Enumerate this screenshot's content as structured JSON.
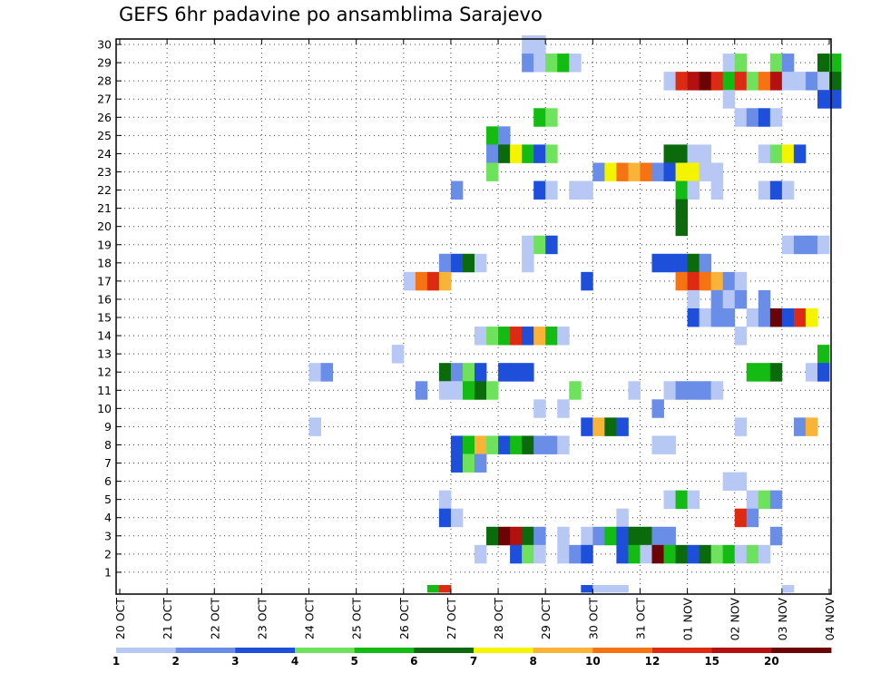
{
  "chart_data": {
    "type": "heatmap",
    "title": "GEFS 6hr padavine po ansamblima Sarajevo",
    "y_ticks": [
      "1",
      "2",
      "3",
      "4",
      "5",
      "6",
      "7",
      "8",
      "9",
      "10",
      "11",
      "12",
      "13",
      "14",
      "15",
      "16",
      "17",
      "18",
      "19",
      "20",
      "21",
      "22",
      "23",
      "24",
      "25",
      "26",
      "27",
      "28",
      "29",
      "30"
    ],
    "x_ticks": [
      "20 OCT",
      "21 OCT",
      "22 OCT",
      "23 OCT",
      "24 OCT",
      "25 OCT",
      "26 OCT",
      "27 OCT",
      "28 OCT",
      "29 OCT",
      "30 OCT",
      "31 OCT",
      "01 NOV",
      "02 NOV",
      "03 NOV",
      "04 NOV"
    ],
    "grid": true,
    "legend": {
      "placement": "bottom",
      "levels": [
        {
          "label": "1",
          "color": "#b7c8f5"
        },
        {
          "label": "2",
          "color": "#6a8ee8"
        },
        {
          "label": "3",
          "color": "#1d4fdb"
        },
        {
          "label": "4",
          "color": "#6fe25d"
        },
        {
          "label": "5",
          "color": "#13bb13"
        },
        {
          "label": "6",
          "color": "#0b6a0b"
        },
        {
          "label": "7",
          "color": "#f4f400"
        },
        {
          "label": "8",
          "color": "#fab339"
        },
        {
          "label": "10",
          "color": "#f57313"
        },
        {
          "label": "12",
          "color": "#dd2a12"
        },
        {
          "label": "15",
          "color": "#b31010"
        },
        {
          "label": "20",
          "color": "#6b0505"
        }
      ]
    },
    "cells": [
      [
        "28 OCT 12Z",
        30,
        1
      ],
      [
        "28 OCT 18Z",
        30,
        1
      ],
      [
        "28 OCT 12Z",
        29,
        2
      ],
      [
        "28 OCT 18Z",
        29,
        1
      ],
      [
        "29 OCT 00Z",
        29,
        4
      ],
      [
        "29 OCT 06Z",
        29,
        5
      ],
      [
        "29 OCT 12Z",
        29,
        1
      ],
      [
        "01 NOV 18Z",
        29,
        1
      ],
      [
        "02 NOV 00Z",
        29,
        4
      ],
      [
        "02 NOV 18Z",
        29,
        4
      ],
      [
        "03 NOV 00Z",
        29,
        2
      ],
      [
        "03 NOV 18Z",
        29,
        6
      ],
      [
        "04 NOV 00Z",
        29,
        5
      ],
      [
        "31 OCT 12Z",
        28,
        1
      ],
      [
        "31 OCT 18Z",
        28,
        12
      ],
      [
        "01 NOV 00Z",
        28,
        15
      ],
      [
        "01 NOV 06Z",
        28,
        20
      ],
      [
        "01 NOV 12Z",
        28,
        12
      ],
      [
        "01 NOV 18Z",
        28,
        5
      ],
      [
        "02 NOV 00Z",
        28,
        12
      ],
      [
        "02 NOV 06Z",
        28,
        4
      ],
      [
        "02 NOV 12Z",
        28,
        10
      ],
      [
        "02 NOV 18Z",
        28,
        15
      ],
      [
        "03 NOV 00Z",
        28,
        1
      ],
      [
        "03 NOV 06Z",
        28,
        1
      ],
      [
        "03 NOV 12Z",
        28,
        2
      ],
      [
        "03 NOV 18Z",
        28,
        1
      ],
      [
        "04 NOV 00Z",
        28,
        6
      ],
      [
        "01 NOV 18Z",
        27,
        1
      ],
      [
        "03 NOV 18Z",
        27,
        3
      ],
      [
        "04 NOV 00Z",
        27,
        3
      ],
      [
        "28 OCT 18Z",
        26,
        5
      ],
      [
        "29 OCT 00Z",
        26,
        4
      ],
      [
        "02 NOV 00Z",
        26,
        1
      ],
      [
        "02 NOV 06Z",
        26,
        2
      ],
      [
        "02 NOV 12Z",
        26,
        3
      ],
      [
        "02 NOV 18Z",
        26,
        1
      ],
      [
        "27 OCT 18Z",
        25,
        5
      ],
      [
        "28 OCT 00Z",
        25,
        2
      ],
      [
        "27 OCT 18Z",
        24,
        2
      ],
      [
        "28 OCT 00Z",
        24,
        6
      ],
      [
        "28 OCT 06Z",
        24,
        7
      ],
      [
        "28 OCT 12Z",
        24,
        5
      ],
      [
        "28 OCT 18Z",
        24,
        3
      ],
      [
        "29 OCT 00Z",
        24,
        4
      ],
      [
        "31 OCT 12Z",
        24,
        6
      ],
      [
        "31 OCT 18Z",
        24,
        6
      ],
      [
        "01 NOV 00Z",
        24,
        1
      ],
      [
        "01 NOV 06Z",
        24,
        1
      ],
      [
        "02 NOV 12Z",
        24,
        1
      ],
      [
        "02 NOV 18Z",
        24,
        4
      ],
      [
        "03 NOV 00Z",
        24,
        7
      ],
      [
        "03 NOV 06Z",
        24,
        3
      ],
      [
        "27 OCT 18Z",
        23,
        4
      ],
      [
        "30 OCT 00Z",
        23,
        2
      ],
      [
        "30 OCT 06Z",
        23,
        7
      ],
      [
        "30 OCT 12Z",
        23,
        10
      ],
      [
        "30 OCT 18Z",
        23,
        8
      ],
      [
        "31 OCT 00Z",
        23,
        10
      ],
      [
        "31 OCT 06Z",
        23,
        2
      ],
      [
        "31 OCT 12Z",
        23,
        3
      ],
      [
        "31 OCT 18Z",
        23,
        7
      ],
      [
        "01 NOV 00Z",
        23,
        7
      ],
      [
        "01 NOV 06Z",
        23,
        1
      ],
      [
        "01 NOV 12Z",
        23,
        1
      ],
      [
        "27 OCT 00Z",
        22,
        2
      ],
      [
        "28 OCT 18Z",
        22,
        3
      ],
      [
        "29 OCT 00Z",
        22,
        1
      ],
      [
        "29 OCT 12Z",
        22,
        1
      ],
      [
        "29 OCT 18Z",
        22,
        1
      ],
      [
        "31 OCT 18Z",
        22,
        5
      ],
      [
        "01 NOV 00Z",
        22,
        1
      ],
      [
        "01 NOV 12Z",
        22,
        1
      ],
      [
        "02 NOV 12Z",
        22,
        1
      ],
      [
        "02 NOV 18Z",
        22,
        3
      ],
      [
        "03 NOV 00Z",
        22,
        1
      ],
      [
        "31 OCT 18Z",
        21,
        6
      ],
      [
        "31 OCT 18Z",
        20,
        6
      ],
      [
        "28 OCT 12Z",
        19,
        1
      ],
      [
        "28 OCT 18Z",
        19,
        4
      ],
      [
        "29 OCT 00Z",
        19,
        3
      ],
      [
        "03 NOV 00Z",
        19,
        1
      ],
      [
        "03 NOV 06Z",
        19,
        2
      ],
      [
        "03 NOV 12Z",
        19,
        2
      ],
      [
        "03 NOV 18Z",
        19,
        1
      ],
      [
        "26 OCT 18Z",
        18,
        2
      ],
      [
        "27 OCT 00Z",
        18,
        3
      ],
      [
        "27 OCT 06Z",
        18,
        6
      ],
      [
        "27 OCT 12Z",
        18,
        1
      ],
      [
        "28 OCT 12Z",
        18,
        1
      ],
      [
        "31 OCT 06Z",
        18,
        3
      ],
      [
        "31 OCT 12Z",
        18,
        3
      ],
      [
        "31 OCT 18Z",
        18,
        3
      ],
      [
        "01 NOV 00Z",
        18,
        6
      ],
      [
        "01 NOV 06Z",
        18,
        2
      ],
      [
        "26 OCT 00Z",
        17,
        1
      ],
      [
        "26 OCT 06Z",
        17,
        10
      ],
      [
        "26 OCT 12Z",
        17,
        12
      ],
      [
        "26 OCT 18Z",
        17,
        8
      ],
      [
        "29 OCT 18Z",
        17,
        3
      ],
      [
        "31 OCT 18Z",
        17,
        10
      ],
      [
        "01 NOV 00Z",
        17,
        12
      ],
      [
        "01 NOV 06Z",
        17,
        10
      ],
      [
        "01 NOV 12Z",
        17,
        8
      ],
      [
        "01 NOV 18Z",
        17,
        2
      ],
      [
        "02 NOV 00Z",
        17,
        1
      ],
      [
        "01 NOV 00Z",
        16,
        1
      ],
      [
        "01 NOV 12Z",
        16,
        2
      ],
      [
        "01 NOV 18Z",
        16,
        1
      ],
      [
        "02 NOV 00Z",
        16,
        2
      ],
      [
        "02 NOV 12Z",
        16,
        2
      ],
      [
        "01 NOV 00Z",
        15,
        3
      ],
      [
        "01 NOV 06Z",
        15,
        1
      ],
      [
        "01 NOV 12Z",
        15,
        2
      ],
      [
        "01 NOV 18Z",
        15,
        2
      ],
      [
        "02 NOV 06Z",
        15,
        1
      ],
      [
        "02 NOV 12Z",
        15,
        2
      ],
      [
        "02 NOV 18Z",
        15,
        20
      ],
      [
        "03 NOV 00Z",
        15,
        3
      ],
      [
        "03 NOV 06Z",
        15,
        12
      ],
      [
        "03 NOV 12Z",
        15,
        7
      ],
      [
        "27 OCT 12Z",
        14,
        1
      ],
      [
        "27 OCT 18Z",
        14,
        4
      ],
      [
        "28 OCT 00Z",
        14,
        5
      ],
      [
        "28 OCT 06Z",
        14,
        12
      ],
      [
        "28 OCT 12Z",
        14,
        3
      ],
      [
        "28 OCT 18Z",
        14,
        8
      ],
      [
        "29 OCT 00Z",
        14,
        5
      ],
      [
        "29 OCT 06Z",
        14,
        1
      ],
      [
        "02 NOV 00Z",
        14,
        1
      ],
      [
        "25 OCT 18Z",
        13,
        1
      ],
      [
        "03 NOV 18Z",
        13,
        5
      ],
      [
        "24 OCT 00Z",
        12,
        1
      ],
      [
        "24 OCT 06Z",
        12,
        2
      ],
      [
        "26 OCT 18Z",
        12,
        6
      ],
      [
        "27 OCT 00Z",
        12,
        2
      ],
      [
        "27 OCT 06Z",
        12,
        4
      ],
      [
        "27 OCT 12Z",
        12,
        3
      ],
      [
        "28 OCT 00Z",
        12,
        3
      ],
      [
        "28 OCT 06Z",
        12,
        3
      ],
      [
        "28 OCT 12Z",
        12,
        3
      ],
      [
        "02 NOV 06Z",
        12,
        5
      ],
      [
        "02 NOV 12Z",
        12,
        5
      ],
      [
        "02 NOV 18Z",
        12,
        6
      ],
      [
        "03 NOV 12Z",
        12,
        1
      ],
      [
        "03 NOV 18Z",
        12,
        3
      ],
      [
        "26 OCT 06Z",
        11,
        2
      ],
      [
        "26 OCT 18Z",
        11,
        1
      ],
      [
        "27 OCT 00Z",
        11,
        1
      ],
      [
        "27 OCT 06Z",
        11,
        5
      ],
      [
        "27 OCT 12Z",
        11,
        6
      ],
      [
        "27 OCT 18Z",
        11,
        4
      ],
      [
        "29 OCT 12Z",
        11,
        4
      ],
      [
        "30 OCT 18Z",
        11,
        1
      ],
      [
        "31 OCT 12Z",
        11,
        1
      ],
      [
        "31 OCT 18Z",
        11,
        2
      ],
      [
        "01 NOV 00Z",
        11,
        2
      ],
      [
        "01 NOV 06Z",
        11,
        2
      ],
      [
        "01 NOV 12Z",
        11,
        1
      ],
      [
        "28 OCT 18Z",
        10,
        1
      ],
      [
        "29 OCT 06Z",
        10,
        1
      ],
      [
        "31 OCT 06Z",
        10,
        2
      ],
      [
        "24 OCT 00Z",
        9,
        1
      ],
      [
        "29 OCT 18Z",
        9,
        3
      ],
      [
        "30 OCT 00Z",
        9,
        8
      ],
      [
        "30 OCT 06Z",
        9,
        6
      ],
      [
        "30 OCT 12Z",
        9,
        3
      ],
      [
        "02 NOV 00Z",
        9,
        1
      ],
      [
        "03 NOV 06Z",
        9,
        2
      ],
      [
        "03 NOV 12Z",
        9,
        8
      ],
      [
        "27 OCT 00Z",
        8,
        3
      ],
      [
        "27 OCT 06Z",
        8,
        5
      ],
      [
        "27 OCT 12Z",
        8,
        8
      ],
      [
        "27 OCT 18Z",
        8,
        4
      ],
      [
        "28 OCT 00Z",
        8,
        3
      ],
      [
        "28 OCT 06Z",
        8,
        5
      ],
      [
        "28 OCT 12Z",
        8,
        6
      ],
      [
        "28 OCT 18Z",
        8,
        2
      ],
      [
        "29 OCT 00Z",
        8,
        2
      ],
      [
        "29 OCT 06Z",
        8,
        1
      ],
      [
        "31 OCT 06Z",
        8,
        1
      ],
      [
        "31 OCT 12Z",
        8,
        1
      ],
      [
        "27 OCT 00Z",
        7,
        3
      ],
      [
        "27 OCT 06Z",
        7,
        4
      ],
      [
        "27 OCT 12Z",
        7,
        2
      ],
      [
        "01 NOV 18Z",
        6,
        1
      ],
      [
        "02 NOV 00Z",
        6,
        1
      ],
      [
        "26 OCT 18Z",
        5,
        1
      ],
      [
        "31 OCT 12Z",
        5,
        1
      ],
      [
        "31 OCT 18Z",
        5,
        5
      ],
      [
        "01 NOV 00Z",
        5,
        1
      ],
      [
        "02 NOV 06Z",
        5,
        1
      ],
      [
        "02 NOV 12Z",
        5,
        4
      ],
      [
        "02 NOV 18Z",
        5,
        2
      ],
      [
        "26 OCT 18Z",
        4,
        3
      ],
      [
        "27 OCT 00Z",
        4,
        1
      ],
      [
        "30 OCT 12Z",
        4,
        1
      ],
      [
        "02 NOV 00Z",
        4,
        12
      ],
      [
        "02 NOV 06Z",
        4,
        2
      ],
      [
        "27 OCT 18Z",
        3,
        6
      ],
      [
        "28 OCT 00Z",
        3,
        20
      ],
      [
        "28 OCT 06Z",
        3,
        15
      ],
      [
        "28 OCT 12Z",
        3,
        6
      ],
      [
        "28 OCT 18Z",
        3,
        2
      ],
      [
        "29 OCT 06Z",
        3,
        1
      ],
      [
        "29 OCT 18Z",
        3,
        1
      ],
      [
        "30 OCT 00Z",
        3,
        2
      ],
      [
        "30 OCT 06Z",
        3,
        5
      ],
      [
        "30 OCT 12Z",
        3,
        3
      ],
      [
        "30 OCT 18Z",
        3,
        6
      ],
      [
        "31 OCT 00Z",
        3,
        6
      ],
      [
        "31 OCT 06Z",
        3,
        2
      ],
      [
        "31 OCT 12Z",
        3,
        2
      ],
      [
        "02 NOV 18Z",
        3,
        2
      ],
      [
        "27 OCT 12Z",
        2,
        1
      ],
      [
        "28 OCT 06Z",
        2,
        3
      ],
      [
        "28 OCT 12Z",
        2,
        4
      ],
      [
        "28 OCT 18Z",
        2,
        1
      ],
      [
        "29 OCT 06Z",
        2,
        1
      ],
      [
        "29 OCT 12Z",
        2,
        2
      ],
      [
        "29 OCT 18Z",
        2,
        3
      ],
      [
        "30 OCT 12Z",
        2,
        3
      ],
      [
        "30 OCT 18Z",
        2,
        5
      ],
      [
        "31 OCT 00Z",
        2,
        1
      ],
      [
        "31 OCT 06Z",
        2,
        20
      ],
      [
        "31 OCT 12Z",
        2,
        5
      ],
      [
        "31 OCT 18Z",
        2,
        6
      ],
      [
        "01 NOV 00Z",
        2,
        3
      ],
      [
        "01 NOV 06Z",
        2,
        6
      ],
      [
        "01 NOV 12Z",
        2,
        4
      ],
      [
        "01 NOV 18Z",
        2,
        5
      ],
      [
        "02 NOV 00Z",
        2,
        1
      ],
      [
        "02 NOV 06Z",
        2,
        4
      ],
      [
        "02 NOV 12Z",
        2,
        1
      ],
      [
        "26 OCT 12Z",
        0,
        5
      ],
      [
        "26 OCT 18Z",
        0,
        12
      ],
      [
        "29 OCT 18Z",
        0,
        3
      ],
      [
        "30 OCT 00Z",
        0,
        1
      ],
      [
        "30 OCT 06Z",
        0,
        1
      ],
      [
        "30 OCT 12Z",
        0,
        1
      ],
      [
        "03 NOV 00Z",
        0,
        1
      ]
    ]
  }
}
